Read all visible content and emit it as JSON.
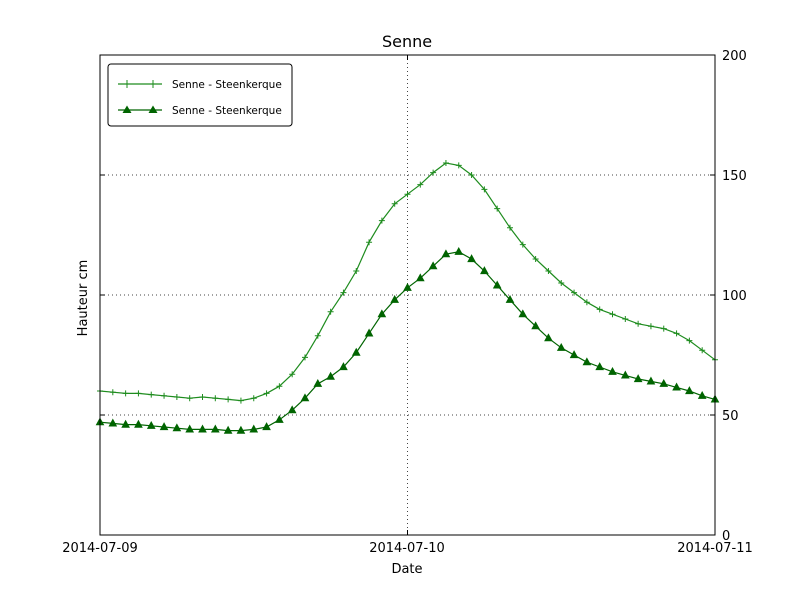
{
  "chart_data": {
    "type": "line",
    "title": "Senne",
    "xlabel": "Date",
    "ylabel": "Hauteur cm",
    "x_tick_labels": [
      "2014-07-09",
      "2014-07-10",
      "2014-07-11"
    ],
    "y_tick_labels": [
      "0",
      "50",
      "100",
      "150",
      "200"
    ],
    "ylim": [
      0,
      200
    ],
    "xlim_hours": [
      0,
      48
    ],
    "x_ticks_hours": [
      0,
      24,
      48
    ],
    "y_ticks": [
      0,
      50,
      100,
      150,
      200
    ],
    "grid_y": [
      50,
      100,
      150
    ],
    "grid_x_hours": [
      24
    ],
    "grid_style": "dotted",
    "legend_position": "upper left",
    "x_hours": [
      0,
      1,
      2,
      3,
      4,
      5,
      6,
      7,
      8,
      9,
      10,
      11,
      12,
      13,
      14,
      15,
      16,
      17,
      18,
      19,
      20,
      21,
      22,
      23,
      24,
      25,
      26,
      27,
      28,
      29,
      30,
      31,
      32,
      33,
      34,
      35,
      36,
      37,
      38,
      39,
      40,
      41,
      42,
      43,
      44,
      45,
      46,
      47,
      48
    ],
    "series": [
      {
        "name": "Senne - Steenkerque",
        "marker": "plus",
        "color": "#1e8c1e",
        "values": [
          60,
          59.5,
          59,
          59,
          58.5,
          58,
          57.5,
          57,
          57.5,
          57,
          56.5,
          56,
          57,
          59,
          62,
          67,
          74,
          83,
          93,
          101,
          110,
          122,
          131,
          138,
          142,
          146,
          151,
          155,
          154,
          150,
          144,
          136,
          128,
          121,
          115,
          110,
          105,
          101,
          97,
          94,
          92,
          90,
          88,
          87,
          86,
          84,
          81,
          77,
          73
        ]
      },
      {
        "name": "Senne - Steenkerque",
        "marker": "triangle",
        "color": "#006400",
        "values": [
          47,
          46.5,
          46,
          46,
          45.5,
          45,
          44.5,
          44,
          44,
          44,
          43.5,
          43.5,
          44,
          45,
          48,
          52,
          57,
          63,
          66,
          70,
          76,
          84,
          92,
          98,
          103,
          107,
          112,
          117,
          118,
          115,
          110,
          104,
          98,
          92,
          87,
          82,
          78,
          75,
          72,
          70,
          68,
          66.5,
          65,
          64,
          63,
          61.5,
          60,
          58,
          56.5
        ]
      }
    ]
  }
}
